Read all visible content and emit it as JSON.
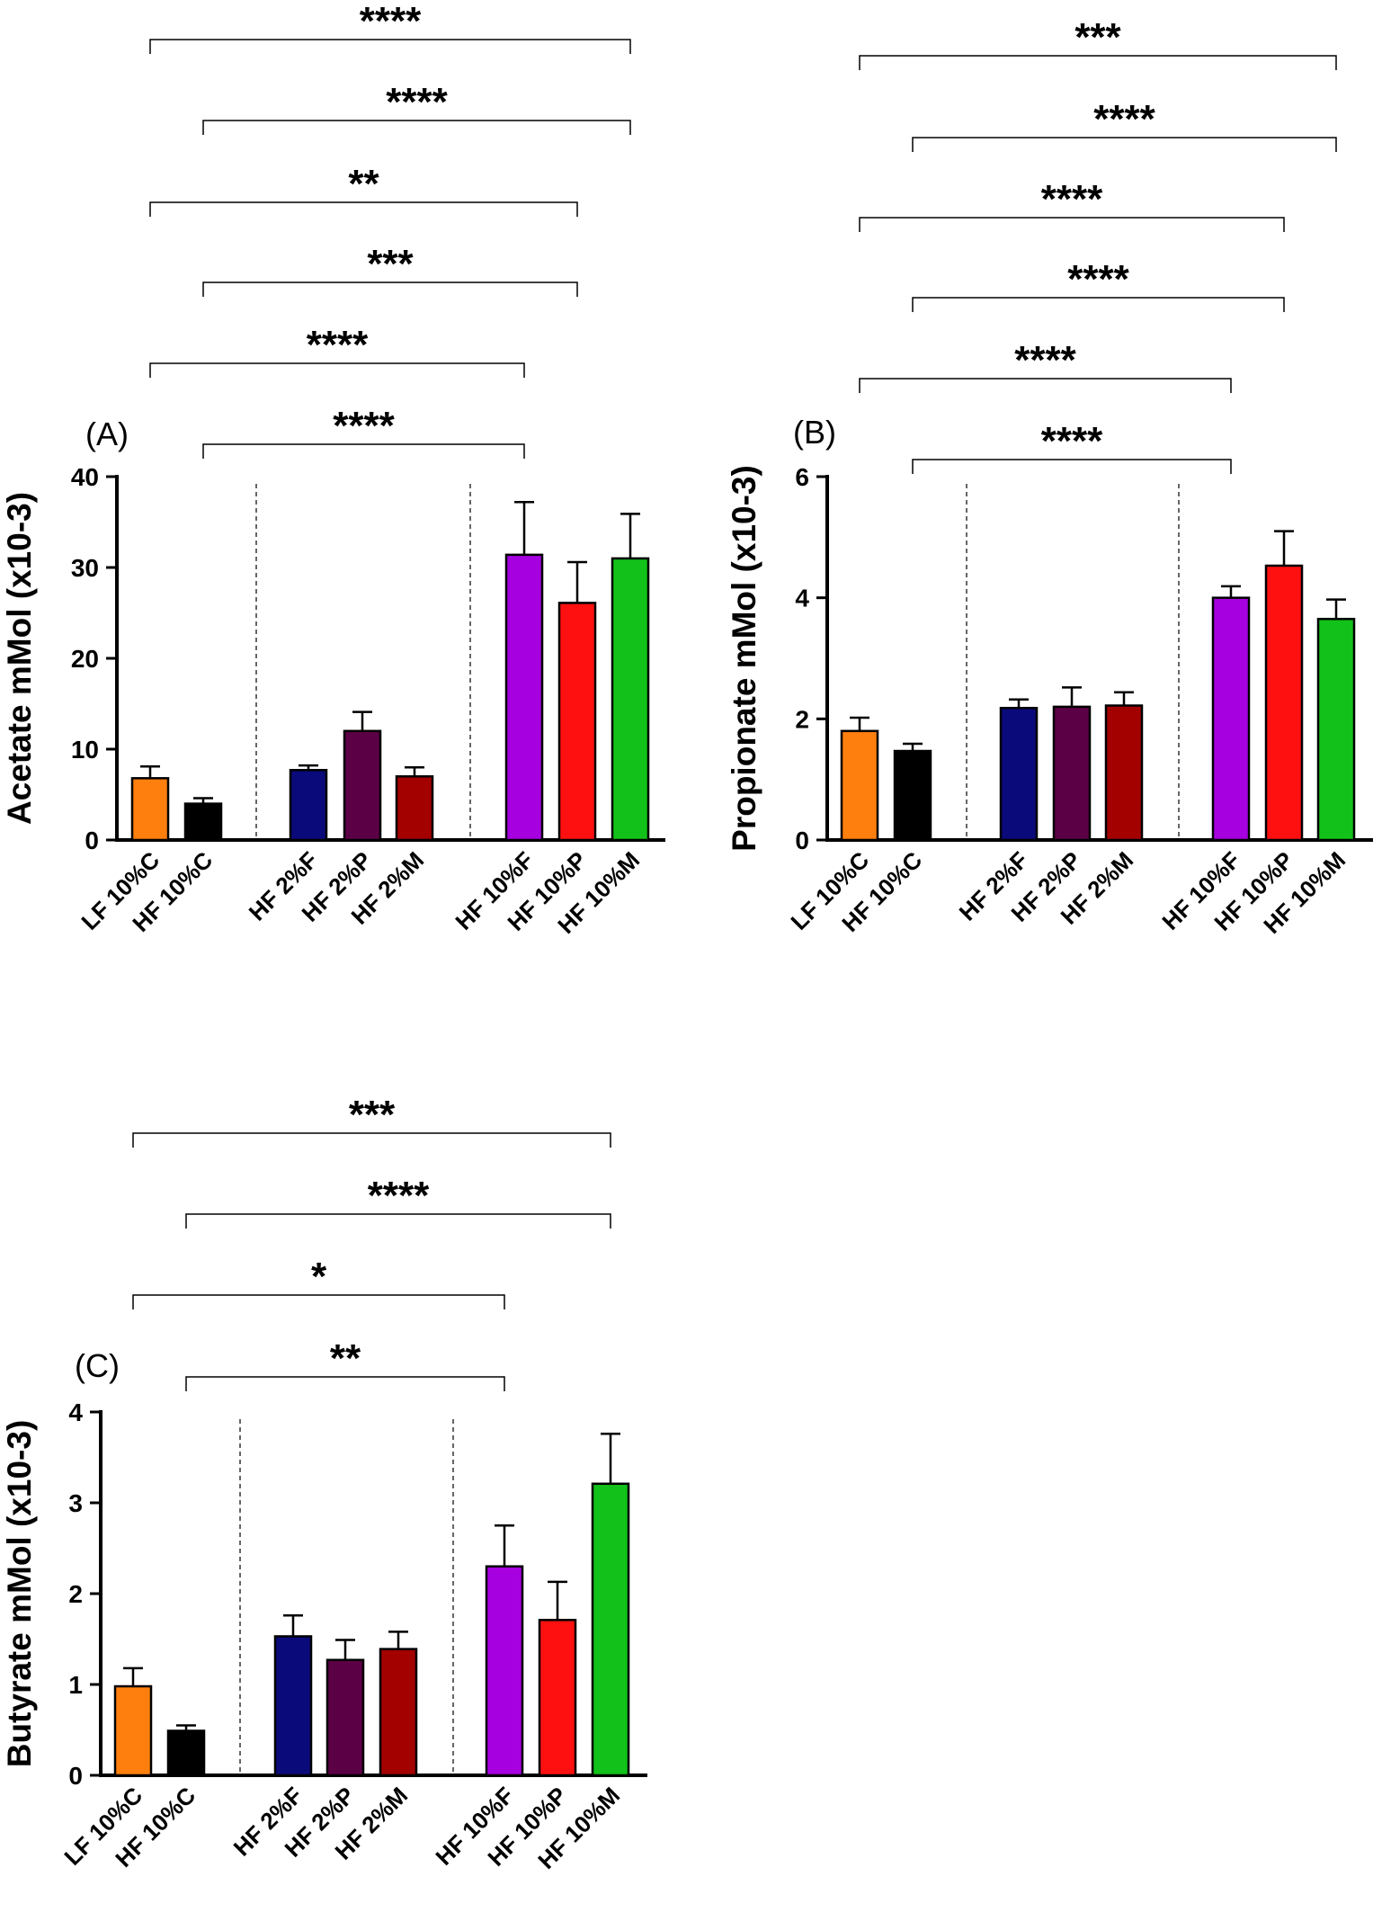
{
  "chart_data": [
    {
      "panel": "(A)",
      "type": "bar",
      "ylabel": "Acetate mMol (x10-3)",
      "ylim": [
        0,
        40
      ],
      "yticks": [
        0,
        10,
        20,
        30,
        40
      ],
      "categories": [
        "LF 10%C",
        "HF 10%C",
        "HF 2%F",
        "HF 2%P",
        "HF 2%M",
        "HF 10%F",
        "HF 10%P",
        "HF 10%M"
      ],
      "values": [
        6.8,
        4.0,
        7.7,
        12.0,
        7.0,
        31.4,
        26.1,
        31.0
      ],
      "errors": [
        1.3,
        0.6,
        0.5,
        2.1,
        1.0,
        5.8,
        4.5,
        4.9
      ],
      "colors": [
        "#ff7f0e",
        "#000000",
        "#0a0a7a",
        "#5c0046",
        "#a30000",
        "#a600e0",
        "#ff1010",
        "#12c21a"
      ],
      "groups": [
        [
          0,
          1
        ],
        [
          2,
          3,
          4
        ],
        [
          5,
          6,
          7
        ]
      ],
      "comparisons": [
        {
          "from": 0,
          "to": 7,
          "label": "****"
        },
        {
          "from": 1,
          "to": 7,
          "label": "****"
        },
        {
          "from": 0,
          "to": 6,
          "label": "**"
        },
        {
          "from": 1,
          "to": 6,
          "label": "***"
        },
        {
          "from": 0,
          "to": 5,
          "label": "****"
        },
        {
          "from": 1,
          "to": 5,
          "label": "****"
        }
      ]
    },
    {
      "panel": "(B)",
      "type": "bar",
      "ylabel": "Propionate mMol (x10-3)",
      "ylim": [
        0,
        6
      ],
      "yticks": [
        0,
        2,
        4,
        6
      ],
      "categories": [
        "LF 10%C",
        "HF 10%C",
        "HF 2%F",
        "HF 2%P",
        "HF 2%M",
        "HF 10%F",
        "HF 10%P",
        "HF 10%M"
      ],
      "values": [
        1.8,
        1.47,
        2.18,
        2.2,
        2.22,
        4.0,
        4.53,
        3.65
      ],
      "errors": [
        0.22,
        0.12,
        0.14,
        0.32,
        0.22,
        0.19,
        0.57,
        0.32
      ],
      "colors": [
        "#ff7f0e",
        "#000000",
        "#0a0a7a",
        "#5c0046",
        "#a30000",
        "#a600e0",
        "#ff1010",
        "#12c21a"
      ],
      "groups": [
        [
          0,
          1
        ],
        [
          2,
          3,
          4
        ],
        [
          5,
          6,
          7
        ]
      ],
      "comparisons": [
        {
          "from": 0,
          "to": 7,
          "label": "***"
        },
        {
          "from": 1,
          "to": 7,
          "label": "****"
        },
        {
          "from": 0,
          "to": 6,
          "label": "****"
        },
        {
          "from": 1,
          "to": 6,
          "label": "****"
        },
        {
          "from": 0,
          "to": 5,
          "label": "****"
        },
        {
          "from": 1,
          "to": 5,
          "label": "****"
        }
      ]
    },
    {
      "panel": "(C)",
      "type": "bar",
      "ylabel": "Butyrate mMol (x10-3)",
      "ylim": [
        0,
        4
      ],
      "yticks": [
        0,
        1,
        2,
        3,
        4
      ],
      "categories": [
        "LF 10%C",
        "HF 10%C",
        "HF 2%F",
        "HF 2%P",
        "HF 2%M",
        "HF 10%F",
        "HF 10%P",
        "HF 10%M"
      ],
      "values": [
        0.98,
        0.49,
        1.53,
        1.27,
        1.39,
        2.3,
        1.71,
        3.21
      ],
      "errors": [
        0.2,
        0.06,
        0.23,
        0.22,
        0.19,
        0.45,
        0.42,
        0.55
      ],
      "colors": [
        "#ff7f0e",
        "#000000",
        "#0a0a7a",
        "#5c0046",
        "#a30000",
        "#a600e0",
        "#ff1010",
        "#12c21a"
      ],
      "groups": [
        [
          0,
          1
        ],
        [
          2,
          3,
          4
        ],
        [
          5,
          6,
          7
        ]
      ],
      "comparisons": [
        {
          "from": 0,
          "to": 7,
          "label": "***"
        },
        {
          "from": 1,
          "to": 7,
          "label": "****"
        },
        {
          "from": 0,
          "to": 5,
          "label": "*"
        },
        {
          "from": 1,
          "to": 5,
          "label": "**"
        }
      ]
    }
  ]
}
